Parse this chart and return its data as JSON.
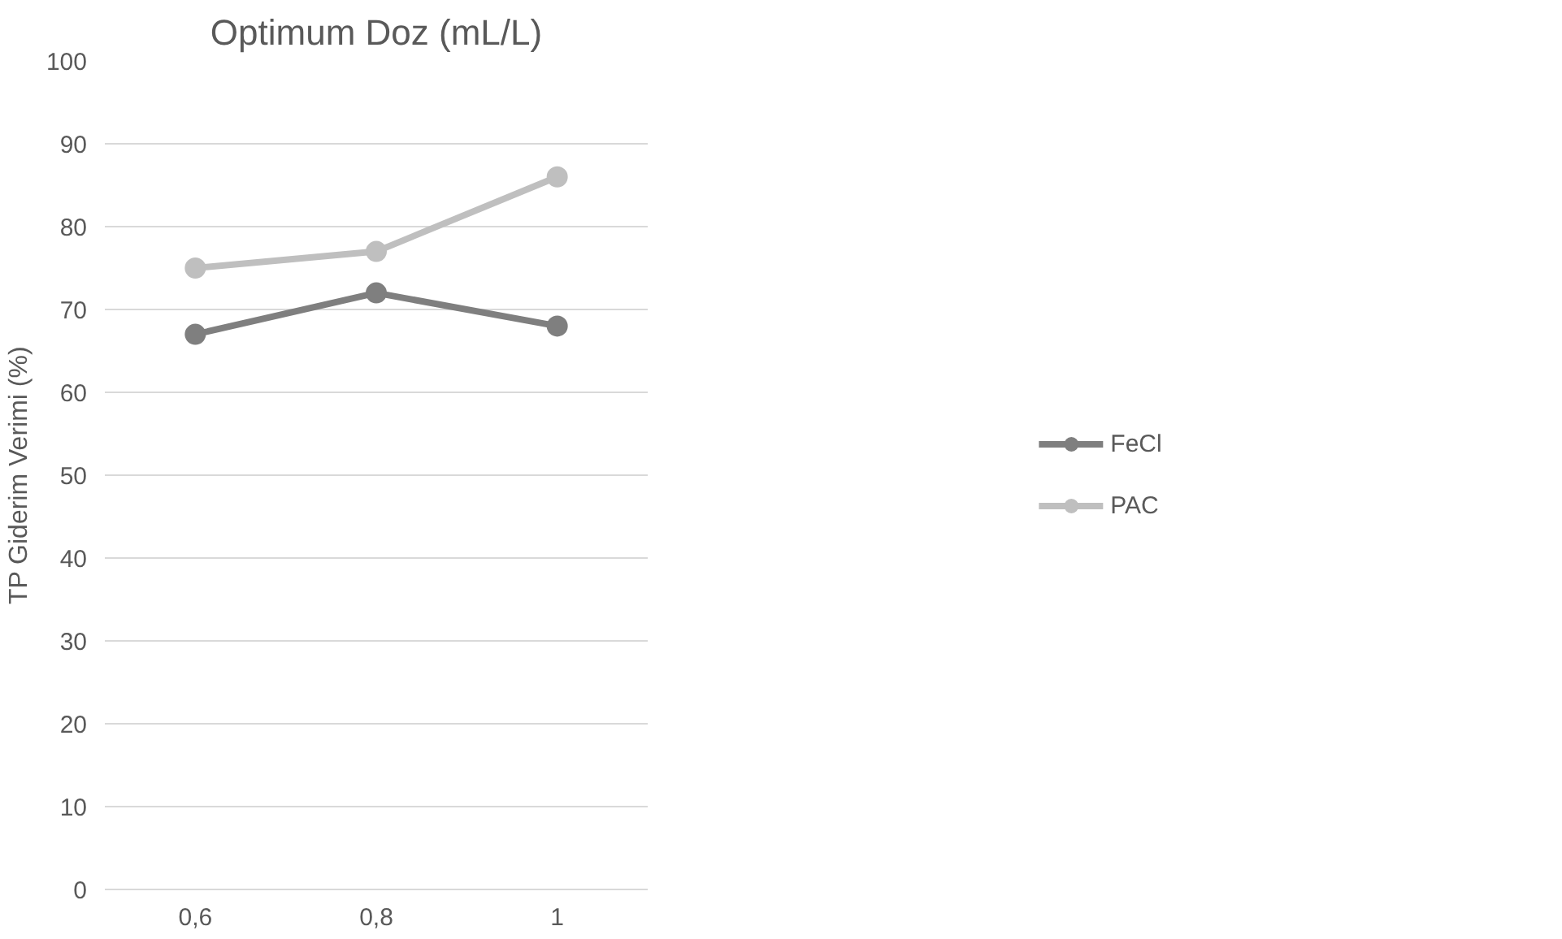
{
  "chart_data": {
    "type": "line",
    "title": "Optimum Doz (mL/L)",
    "ylabel": "TP Giderim Verimi (%)",
    "categories": [
      "0,6",
      "0,8",
      "1"
    ],
    "series": [
      {
        "name": "FeCl",
        "color": "#7f7f7f",
        "values": [
          67,
          72,
          68
        ]
      },
      {
        "name": "PAC",
        "color": "#bfbfbf",
        "values": [
          75,
          77,
          86
        ]
      }
    ],
    "ylim": [
      0,
      100
    ],
    "yticks": [
      0,
      10,
      20,
      30,
      40,
      50,
      60,
      70,
      80,
      90,
      100
    ],
    "grid": "y",
    "legend": "right",
    "marker": "circle",
    "line_style": "solid"
  }
}
